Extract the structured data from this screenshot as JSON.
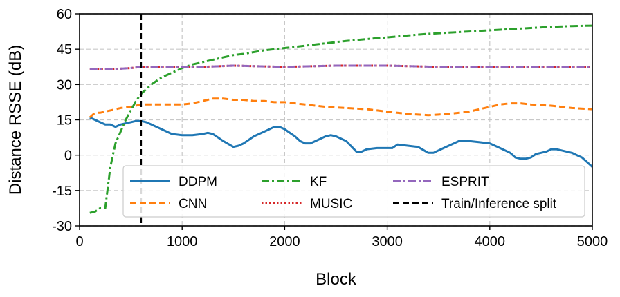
{
  "chart_data": {
    "type": "line",
    "title": "",
    "xlabel": "Block",
    "ylabel": "Distance RSSE (dB)",
    "xlim": [
      0,
      5000
    ],
    "ylim": [
      -30,
      60
    ],
    "xticks": [
      0,
      1000,
      2000,
      3000,
      4000,
      5000
    ],
    "yticks": [
      -30,
      -15,
      0,
      15,
      30,
      45,
      60
    ],
    "grid": true,
    "legend_position": "bottom-center",
    "series": [
      {
        "name": "DDPM",
        "color": "#1f77b4",
        "linestyle": "solid",
        "x": [
          100,
          150,
          200,
          250,
          300,
          350,
          400,
          450,
          500,
          550,
          600,
          650,
          700,
          800,
          900,
          1000,
          1100,
          1200,
          1250,
          1300,
          1400,
          1500,
          1550,
          1600,
          1700,
          1800,
          1900,
          1950,
          2000,
          2100,
          2150,
          2200,
          2250,
          2300,
          2400,
          2450,
          2500,
          2600,
          2700,
          2750,
          2800,
          2900,
          3000,
          3050,
          3100,
          3200,
          3300,
          3400,
          3450,
          3500,
          3600,
          3700,
          3750,
          3800,
          3900,
          4000,
          4050,
          4100,
          4200,
          4250,
          4300,
          4350,
          4400,
          4450,
          4500,
          4550,
          4600,
          4650,
          4700,
          4800,
          4850,
          4900,
          4950,
          5000
        ],
        "y": [
          16,
          15,
          14,
          13,
          13,
          12,
          13,
          13.5,
          14,
          14.5,
          14.5,
          14,
          13,
          11,
          9,
          8.5,
          8.5,
          9,
          9.5,
          9,
          6,
          3.5,
          4,
          5,
          8,
          10,
          12,
          12,
          11,
          8,
          6,
          5,
          5,
          6,
          8,
          8.5,
          8,
          6,
          1.5,
          1.5,
          2.5,
          3,
          3,
          3,
          4.5,
          4,
          3.5,
          1,
          1,
          2,
          4,
          6,
          6,
          6,
          5.5,
          5,
          4,
          3,
          1,
          -1,
          -1.5,
          -1.5,
          -1,
          0.5,
          1,
          1.5,
          2.5,
          2.5,
          2,
          1,
          0,
          -1,
          -3,
          -5
        ]
      },
      {
        "name": "CNN",
        "color": "#ff7f0e",
        "linestyle": "dashed",
        "x": [
          100,
          150,
          200,
          300,
          400,
          500,
          600,
          700,
          800,
          900,
          1000,
          1100,
          1200,
          1300,
          1400,
          1500,
          1600,
          1700,
          1800,
          1900,
          2000,
          2200,
          2400,
          2600,
          2800,
          3000,
          3200,
          3400,
          3600,
          3800,
          4000,
          4100,
          4200,
          4300,
          4400,
          4600,
          4800,
          5000
        ],
        "y": [
          16,
          18,
          18,
          19,
          20,
          20.5,
          21.5,
          21.5,
          21.5,
          21.5,
          21.5,
          22,
          23,
          24,
          24,
          23.5,
          23.5,
          23,
          23,
          22.5,
          22.5,
          21.5,
          20.5,
          20,
          19.5,
          18.5,
          17.5,
          17,
          17.5,
          18.5,
          20.5,
          21.5,
          22,
          22,
          21.5,
          21,
          20,
          19.5
        ]
      },
      {
        "name": "KF",
        "color": "#2ca02c",
        "linestyle": "dashdot",
        "x": [
          100,
          150,
          200,
          250,
          300,
          350,
          400,
          450,
          500,
          550,
          600,
          650,
          700,
          800,
          900,
          1000,
          1100,
          1200,
          1300,
          1400,
          1500,
          1600,
          1800,
          2000,
          2200,
          2400,
          2600,
          2800,
          3000,
          3200,
          3400,
          3600,
          3800,
          4000,
          4200,
          4400,
          4600,
          4800,
          5000
        ],
        "y": [
          -24.5,
          -24,
          -22.5,
          -22.5,
          -5,
          5,
          10,
          15,
          19,
          23,
          26,
          28,
          30,
          33,
          35,
          37,
          38.5,
          39.5,
          40.5,
          41.5,
          42.5,
          43,
          44.5,
          45.5,
          46.5,
          47.5,
          48.5,
          49.3,
          50,
          50.8,
          51.5,
          52,
          52.5,
          53,
          53.5,
          54,
          54.5,
          54.8,
          55
        ]
      },
      {
        "name": "MUSIC",
        "color": "#d62728",
        "linestyle": "dotted",
        "x": [
          100,
          300,
          500,
          600,
          800,
          1000,
          1200,
          1500,
          2000,
          2500,
          3000,
          3500,
          4000,
          4500,
          5000
        ],
        "y": [
          36.5,
          36.5,
          37,
          37.5,
          37.5,
          37.5,
          37.5,
          38,
          37.5,
          38,
          38,
          37.5,
          37.5,
          37.5,
          37.5
        ]
      },
      {
        "name": "ESPRIT",
        "color": "#9467bd",
        "linestyle": "dashdot",
        "x": [
          100,
          300,
          500,
          600,
          800,
          1000,
          1200,
          1500,
          2000,
          2500,
          3000,
          3500,
          4000,
          4500,
          5000
        ],
        "y": [
          36.5,
          36.5,
          37,
          37.5,
          37.5,
          37.5,
          37.5,
          38,
          37.5,
          38,
          38,
          37.5,
          37.5,
          37.5,
          37.5
        ]
      }
    ],
    "vlines": [
      {
        "name": "Train/Inference split",
        "x": 600,
        "color": "#000000",
        "linestyle": "dashed"
      }
    ],
    "legend_order": [
      "DDPM",
      "CNN",
      "KF",
      "MUSIC",
      "ESPRIT",
      "Train/Inference split"
    ]
  }
}
